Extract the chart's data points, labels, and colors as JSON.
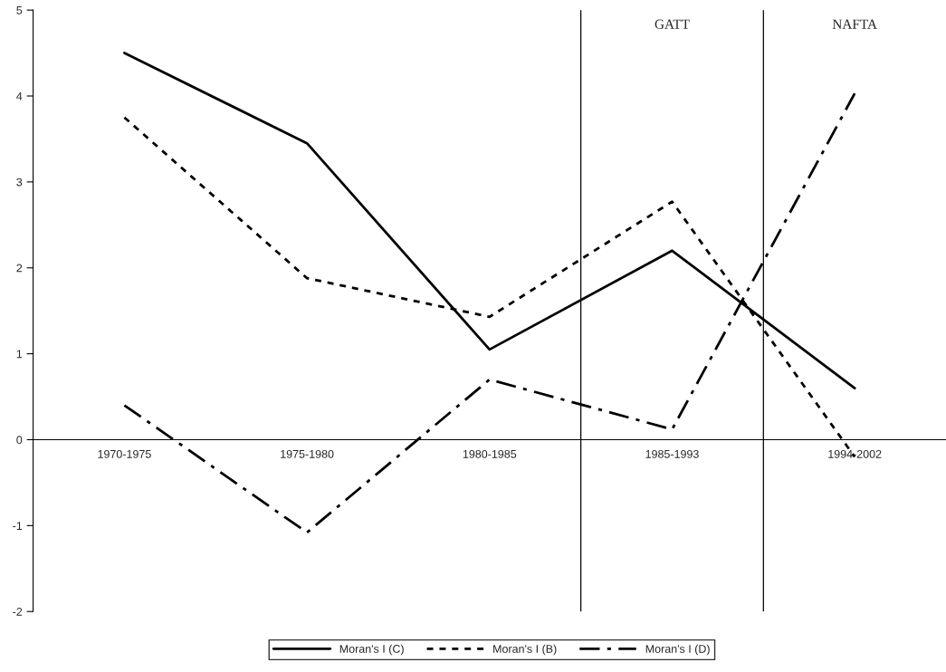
{
  "chart_data": {
    "type": "line",
    "categories": [
      "1970-1975",
      "1975-1980",
      "1980-1985",
      "1985-1993",
      "1994-2002"
    ],
    "series": [
      {
        "name": "Moran's I (C)",
        "color": "#000000",
        "line_style": "solid",
        "values": [
          4.5,
          3.45,
          1.05,
          2.2,
          0.6
        ]
      },
      {
        "name": "Moran's I (B)",
        "color": "#000000",
        "line_style": "dotted",
        "values": [
          3.75,
          1.88,
          1.43,
          2.77,
          -0.2
        ]
      },
      {
        "name": "Moran's I (D)",
        "color": "#000000",
        "line_style": "dashdot",
        "values": [
          0.4,
          -1.08,
          0.7,
          0.12,
          4.03
        ]
      }
    ],
    "ylim": [
      -2,
      5
    ],
    "yticks": [
      -2,
      -1,
      0,
      1,
      2,
      3,
      4,
      5
    ],
    "annotations": [
      "GATT",
      "NAFTA"
    ],
    "grid": false,
    "legend": "bottom",
    "marker": "none"
  }
}
